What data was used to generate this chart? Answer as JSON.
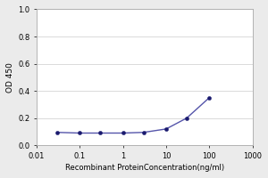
{
  "x": [
    0.03,
    0.1,
    0.3,
    1,
    3,
    10,
    30,
    100
  ],
  "y": [
    0.095,
    0.09,
    0.09,
    0.09,
    0.095,
    0.12,
    0.2,
    0.35
  ],
  "line_color": "#5555aa",
  "marker_color": "#1a1a6e",
  "marker_size": 3.0,
  "line_width": 1.0,
  "xlabel": "Recombinant ProteinConcentration(ng/ml)",
  "ylabel": "OD 450",
  "xlim": [
    0.01,
    1000
  ],
  "ylim": [
    0,
    1
  ],
  "yticks": [
    0,
    0.2,
    0.4,
    0.6,
    0.8,
    1
  ],
  "xtick_labels": [
    "0.01",
    "0.1",
    "1",
    "10",
    "100",
    "1000"
  ],
  "xtick_vals": [
    0.01,
    0.1,
    1,
    10,
    100,
    1000
  ],
  "background_color": "#ebebeb",
  "plot_bg": "#ffffff",
  "xlabel_fontsize": 6.0,
  "ylabel_fontsize": 6.5,
  "tick_fontsize": 6.0,
  "grid_color": "#cccccc",
  "spine_color": "#aaaaaa"
}
